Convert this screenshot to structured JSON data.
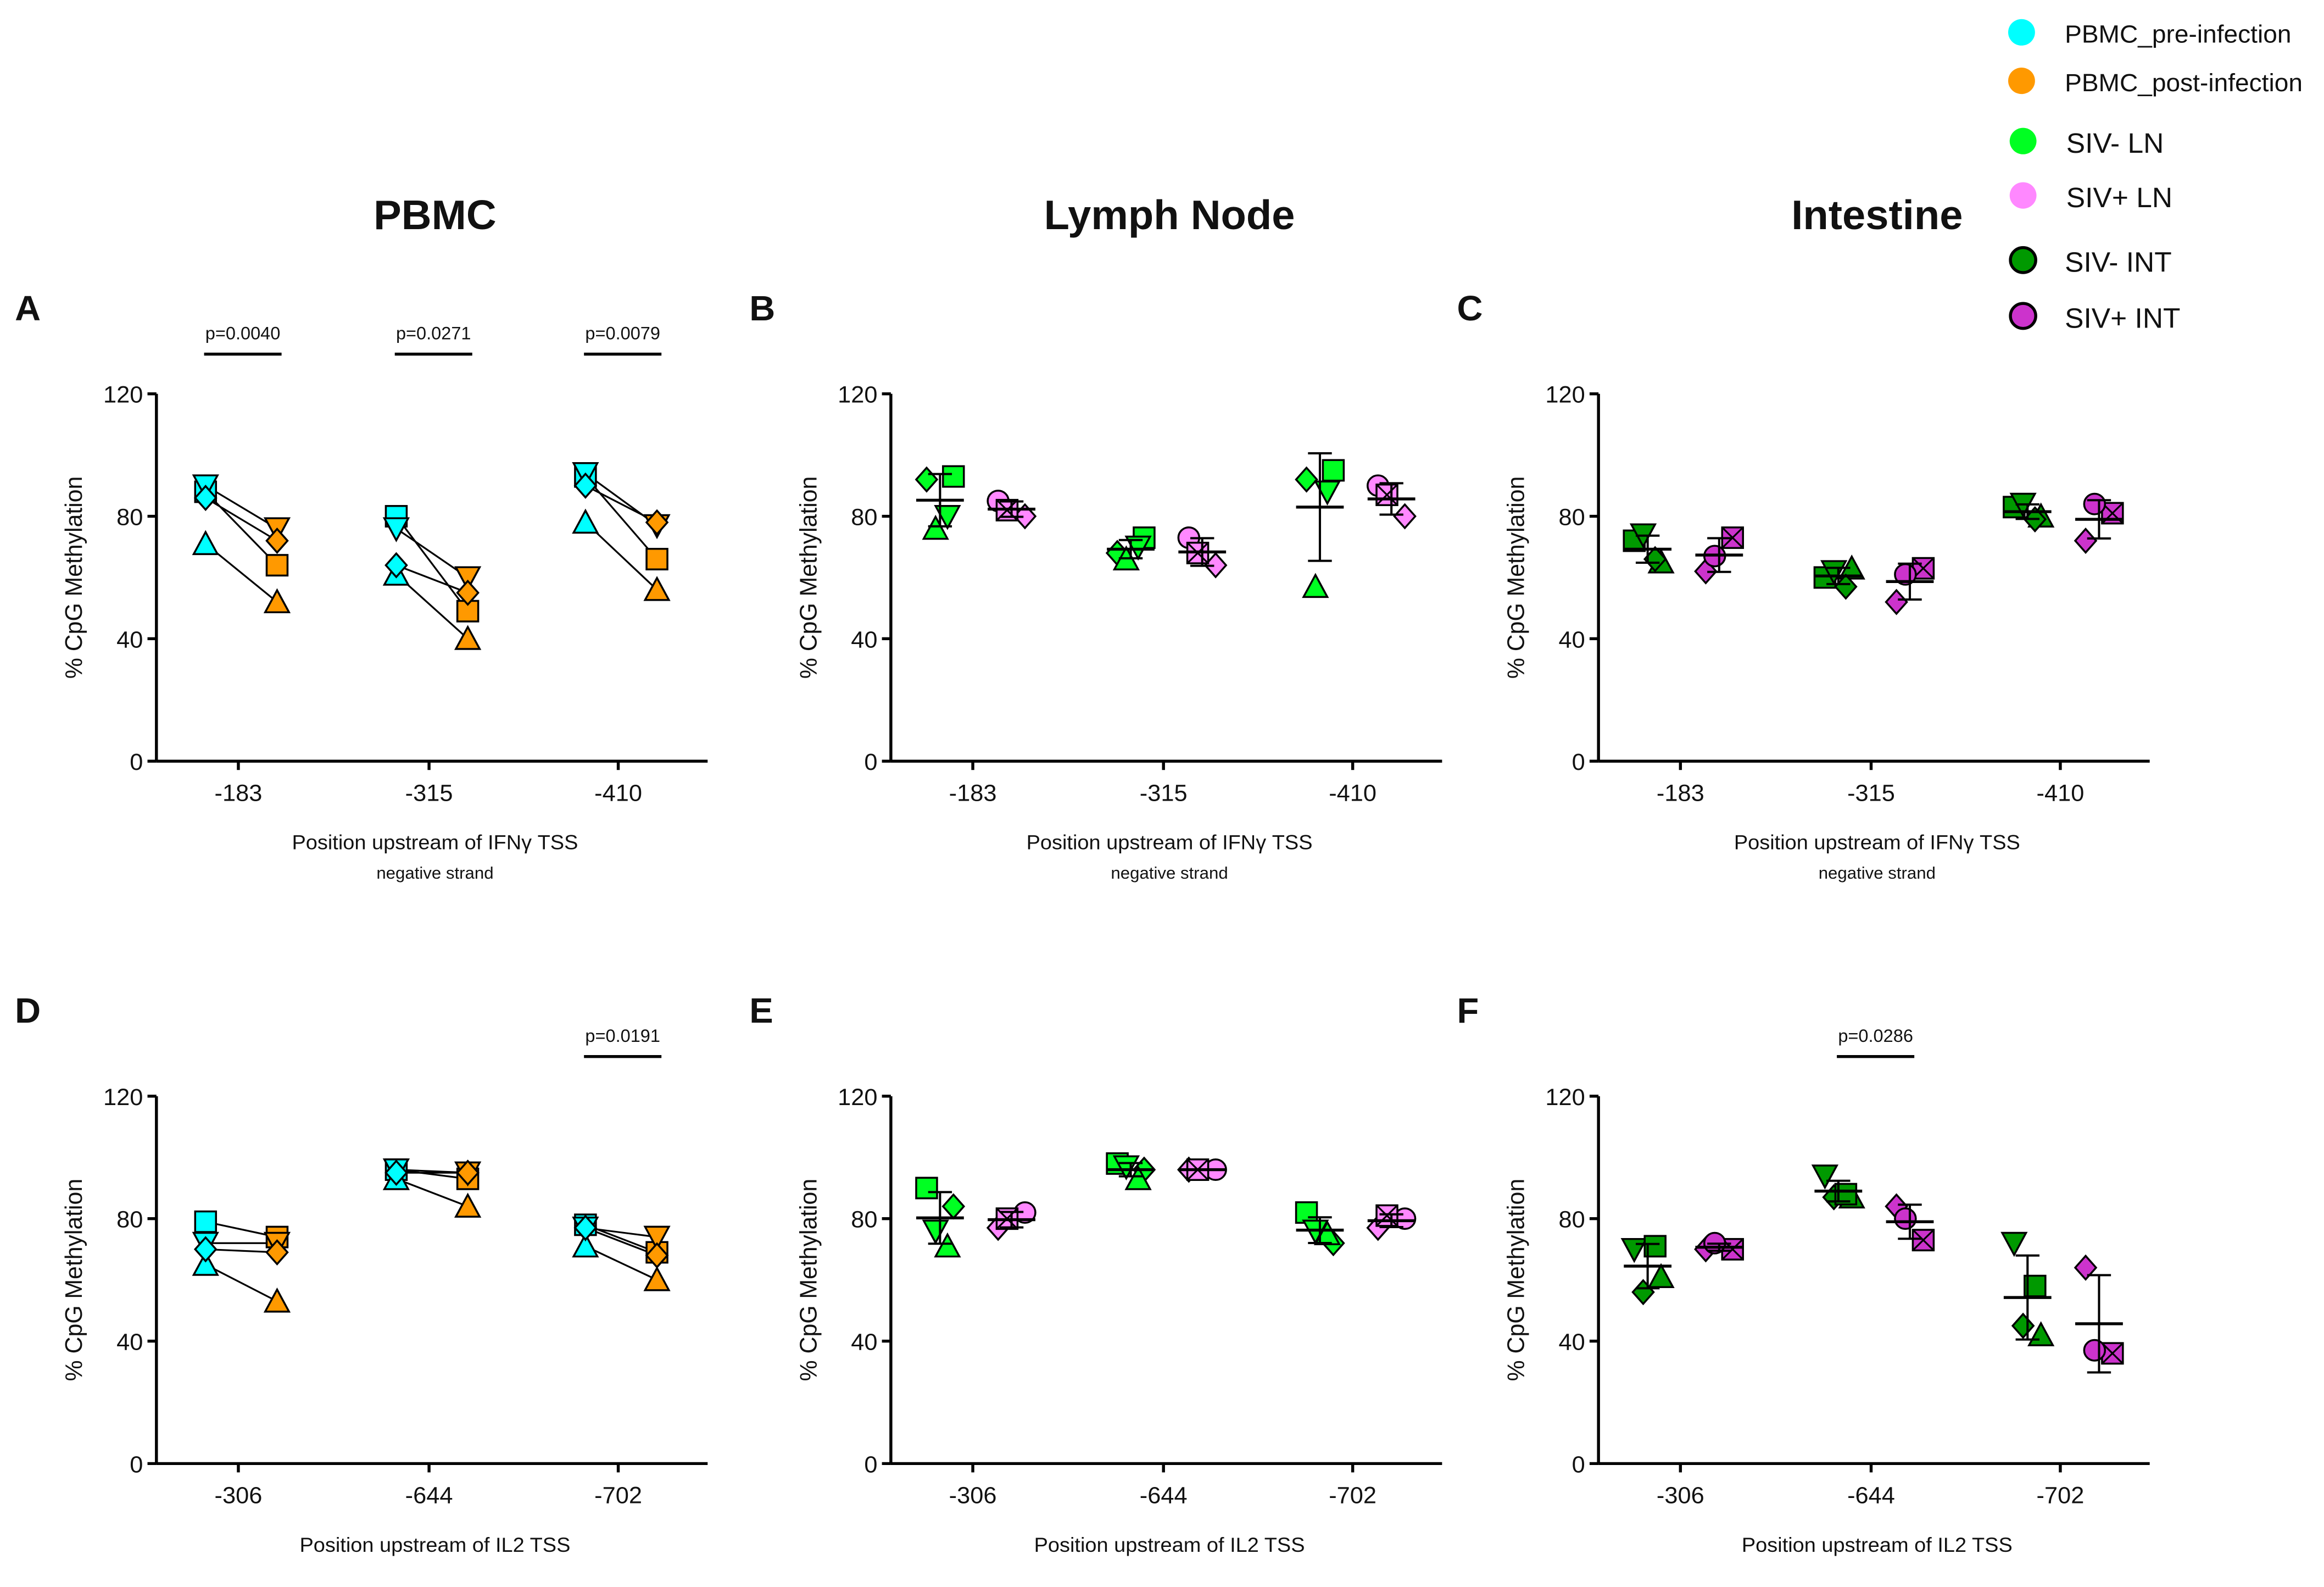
{
  "legend": [
    {
      "label": "PBMC_pre-infection",
      "color": "#00FFFF",
      "outlined": false
    },
    {
      "label": "PBMC_post-infection",
      "color": "#FF9900",
      "outlined": false
    },
    {
      "label": "SIV- LN",
      "color": "#00FF22",
      "outlined": false
    },
    {
      "label": "SIV+ LN",
      "color": "#FF88FF",
      "outlined": false
    },
    {
      "label": "SIV- INT",
      "color": "#009900",
      "outlined": true
    },
    {
      "label": "SIV+ INT",
      "color": "#CC33CC",
      "outlined": true
    }
  ],
  "column_titles": [
    "PBMC",
    "Lymph Node",
    "Intestine"
  ],
  "chart_data": [
    {
      "panel": "A",
      "type": "paired-scatter",
      "ylabel": "% CpG Methylation",
      "xlabel": "Position upstream of IFNγ TSS",
      "xsublabel": "negative strand",
      "ylim": [
        0,
        120
      ],
      "yticks": [
        0,
        40,
        80,
        120
      ],
      "categories": [
        "-183",
        "-315",
        "-410"
      ],
      "groups": [
        {
          "name": "PBMC_pre-infection",
          "color": "#00FFFF"
        },
        {
          "name": "PBMC_post-infection",
          "color": "#FF9900"
        }
      ],
      "shapes": [
        "square",
        "triangle-up",
        "triangle-down",
        "diamond"
      ],
      "values": [
        [
          [
            88,
            71,
            90,
            86
          ],
          [
            64,
            52,
            76,
            72
          ]
        ],
        [
          [
            80,
            61,
            76,
            64
          ],
          [
            49,
            40,
            60,
            55
          ]
        ],
        [
          [
            93,
            78,
            94,
            90
          ],
          [
            66,
            56,
            77,
            78
          ]
        ]
      ],
      "pvalues": [
        {
          "category": 0,
          "text": "p=0.0040"
        },
        {
          "category": 1,
          "text": "p=0.0271"
        },
        {
          "category": 2,
          "text": "p=0.0079"
        }
      ]
    },
    {
      "panel": "B",
      "type": "scatter-mean-sd",
      "ylabel": "% CpG Methylation",
      "xlabel": "Position upstream of IFNγ TSS",
      "xsublabel": "negative strand",
      "ylim": [
        0,
        120
      ],
      "yticks": [
        0,
        40,
        80,
        120
      ],
      "categories": [
        "-183",
        "-315",
        "-410"
      ],
      "groups": [
        {
          "name": "SIV- LN",
          "color": "#00FF22",
          "shapes": [
            "diamond",
            "square",
            "triangle-up",
            "triangle-down"
          ]
        },
        {
          "name": "SIV+ LN",
          "color": "#FF88FF",
          "shapes": [
            "circle",
            "diamond",
            "square-x"
          ]
        }
      ],
      "values": [
        [
          [
            92,
            93,
            76,
            80
          ],
          [
            85,
            80,
            82
          ]
        ],
        [
          [
            68,
            73,
            66,
            70
          ],
          [
            73,
            64,
            68
          ]
        ],
        [
          [
            92,
            95,
            57,
            88
          ],
          [
            90,
            80,
            87
          ]
        ]
      ],
      "pvalues": []
    },
    {
      "panel": "C",
      "type": "scatter-mean-sd",
      "ylabel": "% CpG Methylation",
      "xlabel": "Position upstream of IFNγ TSS",
      "xsublabel": "negative strand",
      "ylim": [
        0,
        120
      ],
      "yticks": [
        0,
        40,
        80,
        120
      ],
      "categories": [
        "-183",
        "-315",
        "-410"
      ],
      "groups": [
        {
          "name": "SIV- INT",
          "color": "#009900",
          "shapes": [
            "square",
            "triangle-up",
            "triangle-down",
            "diamond"
          ]
        },
        {
          "name": "SIV+ INT",
          "color": "#CC33CC",
          "shapes": [
            "diamond",
            "square-x",
            "circle"
          ]
        }
      ],
      "values": [
        [
          [
            72,
            65,
            74,
            66
          ],
          [
            62,
            73,
            67
          ]
        ],
        [
          [
            60,
            63,
            62,
            57
          ],
          [
            52,
            63,
            61
          ]
        ],
        [
          [
            83,
            80,
            84,
            79
          ],
          [
            72,
            81,
            84
          ]
        ]
      ],
      "pvalues": []
    },
    {
      "panel": "D",
      "type": "paired-scatter",
      "ylabel": "% CpG Methylation",
      "xlabel": "Position upstream of IL2 TSS",
      "xsublabel": "",
      "ylim": [
        0,
        120
      ],
      "yticks": [
        0,
        40,
        80,
        120
      ],
      "categories": [
        "-306",
        "-644",
        "-702"
      ],
      "groups": [
        {
          "name": "PBMC_pre-infection",
          "color": "#00FFFF"
        },
        {
          "name": "PBMC_post-infection",
          "color": "#FF9900"
        }
      ],
      "shapes": [
        "square",
        "triangle-up",
        "triangle-down",
        "diamond"
      ],
      "values": [
        [
          [
            79,
            65,
            72,
            70
          ],
          [
            74,
            53,
            72,
            69
          ]
        ],
        [
          [
            96,
            93,
            96,
            95
          ],
          [
            93,
            84,
            95,
            95
          ]
        ],
        [
          [
            78,
            71,
            77,
            77
          ],
          [
            69,
            60,
            74,
            68
          ]
        ]
      ],
      "pvalues": [
        {
          "category": 2,
          "text": "p=0.0191"
        }
      ]
    },
    {
      "panel": "E",
      "type": "scatter-mean-sd",
      "ylabel": "% CpG Methylation",
      "xlabel": "Position upstream of IL2 TSS",
      "xsublabel": "",
      "ylim": [
        0,
        120
      ],
      "yticks": [
        0,
        40,
        80,
        120
      ],
      "categories": [
        "-306",
        "-644",
        "-702"
      ],
      "groups": [
        {
          "name": "SIV- LN",
          "color": "#00FF22",
          "shapes": [
            "square",
            "diamond",
            "triangle-down",
            "triangle-up"
          ]
        },
        {
          "name": "SIV+ LN",
          "color": "#FF88FF",
          "shapes": [
            "diamond",
            "circle",
            "square-x"
          ]
        }
      ],
      "values": [
        [
          [
            90,
            84,
            76,
            71
          ],
          [
            77,
            82,
            80
          ]
        ],
        [
          [
            98,
            96,
            97,
            93
          ],
          [
            96,
            96,
            96
          ]
        ],
        [
          [
            82,
            72,
            76,
            75
          ],
          [
            77,
            80,
            81
          ]
        ]
      ],
      "pvalues": []
    },
    {
      "panel": "F",
      "type": "scatter-mean-sd",
      "ylabel": "% CpG Methylation",
      "xlabel": "Position upstream of IL2 TSS",
      "xsublabel": "",
      "ylim": [
        0,
        120
      ],
      "yticks": [
        0,
        40,
        80,
        120
      ],
      "categories": [
        "-306",
        "-644",
        "-702"
      ],
      "groups": [
        {
          "name": "SIV- INT",
          "color": "#009900",
          "shapes": [
            "triangle-down",
            "triangle-up",
            "diamond",
            "square"
          ]
        },
        {
          "name": "SIV+ INT",
          "color": "#CC33CC",
          "shapes": [
            "diamond",
            "square-x",
            "circle"
          ]
        }
      ],
      "values": [
        [
          [
            70,
            61,
            56,
            71
          ],
          [
            70,
            70,
            72
          ]
        ],
        [
          [
            94,
            87,
            87,
            88
          ],
          [
            84,
            73,
            80
          ]
        ],
        [
          [
            72,
            42,
            45,
            58
          ],
          [
            64,
            36,
            37
          ]
        ]
      ],
      "pvalues": [
        {
          "category": 1,
          "text": "p=0.0286"
        }
      ]
    }
  ]
}
